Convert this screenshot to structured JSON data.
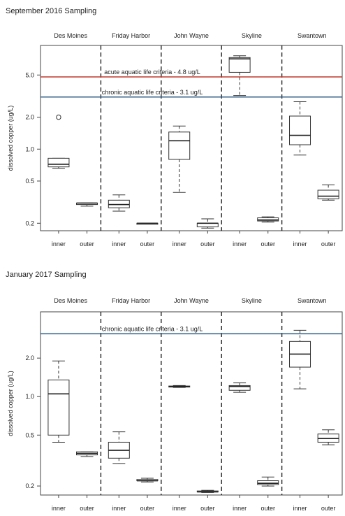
{
  "chart_data": [
    {
      "type": "box",
      "title": "September 2016 Sampling",
      "ylabel": "dissolved copper (ug/L)",
      "yscale": "log",
      "ylim": [
        0.17,
        9.5
      ],
      "yticks": [
        0.2,
        0.5,
        1.0,
        2.0,
        5.0
      ],
      "ytick_labels": [
        "0.2",
        "0.5",
        "1.0",
        "2.0",
        "5.0"
      ],
      "sites": [
        "Des Moines",
        "Friday Harbor",
        "John Wayne",
        "Skyline",
        "Swantown"
      ],
      "locations": [
        "inner",
        "outer"
      ],
      "reference_lines": [
        {
          "label": "acute aquatic life criteria - 4.8 ug/L",
          "value": 4.8,
          "color": "#c0392b"
        },
        {
          "label": "chronic aquatic life criteria - 3.1 ug/L",
          "value": 3.1,
          "color": "#2f5f8a"
        }
      ],
      "boxes": [
        {
          "site": "Des Moines",
          "location": "inner",
          "whislo": 0.66,
          "q1": 0.68,
          "med": 0.72,
          "q3": 0.82,
          "whishi": 0.82,
          "fliers": [
            2.0
          ]
        },
        {
          "site": "Des Moines",
          "location": "outer",
          "whislo": 0.29,
          "q1": 0.3,
          "med": 0.31,
          "q3": 0.31,
          "whishi": 0.31,
          "fliers": []
        },
        {
          "site": "Friday Harbor",
          "location": "inner",
          "whislo": 0.26,
          "q1": 0.28,
          "med": 0.3,
          "q3": 0.33,
          "whishi": 0.37,
          "fliers": []
        },
        {
          "site": "Friday Harbor",
          "location": "outer",
          "whislo": 0.2,
          "q1": 0.2,
          "med": 0.2,
          "q3": 0.2,
          "whishi": 0.2,
          "fliers": []
        },
        {
          "site": "John Wayne",
          "location": "inner",
          "whislo": 0.39,
          "q1": 0.8,
          "med": 1.2,
          "q3": 1.45,
          "whishi": 1.65,
          "fliers": []
        },
        {
          "site": "John Wayne",
          "location": "outer",
          "whislo": 0.18,
          "q1": 0.185,
          "med": 0.2,
          "q3": 0.2,
          "whishi": 0.22,
          "fliers": []
        },
        {
          "site": "Skyline",
          "location": "inner",
          "whislo": 3.2,
          "q1": 5.3,
          "med": 7.1,
          "q3": 7.3,
          "whishi": 7.6,
          "fliers": []
        },
        {
          "site": "Skyline",
          "location": "outer",
          "whislo": 0.205,
          "q1": 0.21,
          "med": 0.215,
          "q3": 0.225,
          "whishi": 0.23,
          "fliers": []
        },
        {
          "site": "Swantown",
          "location": "inner",
          "whislo": 0.88,
          "q1": 1.1,
          "med": 1.35,
          "q3": 2.05,
          "whishi": 2.8,
          "fliers": []
        },
        {
          "site": "Swantown",
          "location": "outer",
          "whislo": 0.33,
          "q1": 0.34,
          "med": 0.36,
          "q3": 0.41,
          "whishi": 0.46,
          "fliers": []
        }
      ]
    },
    {
      "type": "box",
      "title": "January 2017 Sampling",
      "ylabel": "dissolved copper (ug/L)",
      "yscale": "log",
      "ylim": [
        0.17,
        4.6
      ],
      "yticks": [
        0.2,
        0.5,
        1.0,
        2.0
      ],
      "ytick_labels": [
        "0.2",
        "0.5",
        "1.0",
        "2.0"
      ],
      "sites": [
        "Des Moines",
        "Friday Harbor",
        "John Wayne",
        "Skyline",
        "Swantown"
      ],
      "locations": [
        "inner",
        "outer"
      ],
      "reference_lines": [
        {
          "label": "chronic aquatic life criteria - 3.1 ug/L",
          "value": 3.1,
          "color": "#2f5f8a"
        }
      ],
      "boxes": [
        {
          "site": "Des Moines",
          "location": "inner",
          "whislo": 0.44,
          "q1": 0.5,
          "med": 1.05,
          "q3": 1.35,
          "whishi": 1.9,
          "fliers": []
        },
        {
          "site": "Des Moines",
          "location": "outer",
          "whislo": 0.34,
          "q1": 0.35,
          "med": 0.36,
          "q3": 0.37,
          "whishi": 0.37,
          "fliers": []
        },
        {
          "site": "Friday Harbor",
          "location": "inner",
          "whislo": 0.3,
          "q1": 0.33,
          "med": 0.38,
          "q3": 0.44,
          "whishi": 0.53,
          "fliers": []
        },
        {
          "site": "Friday Harbor",
          "location": "outer",
          "whislo": 0.215,
          "q1": 0.22,
          "med": 0.22,
          "q3": 0.225,
          "whishi": 0.23,
          "fliers": []
        },
        {
          "site": "John Wayne",
          "location": "inner",
          "whislo": 1.18,
          "q1": 1.19,
          "med": 1.2,
          "q3": 1.21,
          "whishi": 1.22,
          "fliers": []
        },
        {
          "site": "John Wayne",
          "location": "outer",
          "whislo": 0.178,
          "q1": 0.18,
          "med": 0.18,
          "q3": 0.183,
          "whishi": 0.185,
          "fliers": []
        },
        {
          "site": "Skyline",
          "location": "inner",
          "whislo": 1.08,
          "q1": 1.12,
          "med": 1.2,
          "q3": 1.22,
          "whishi": 1.28,
          "fliers": []
        },
        {
          "site": "Skyline",
          "location": "outer",
          "whislo": 0.2,
          "q1": 0.205,
          "med": 0.21,
          "q3": 0.22,
          "whishi": 0.235,
          "fliers": []
        },
        {
          "site": "Swantown",
          "location": "inner",
          "whislo": 1.15,
          "q1": 1.7,
          "med": 2.15,
          "q3": 2.7,
          "whishi": 3.3,
          "fliers": []
        },
        {
          "site": "Swantown",
          "location": "outer",
          "whislo": 0.42,
          "q1": 0.44,
          "med": 0.47,
          "q3": 0.51,
          "whishi": 0.55,
          "fliers": []
        }
      ]
    }
  ]
}
